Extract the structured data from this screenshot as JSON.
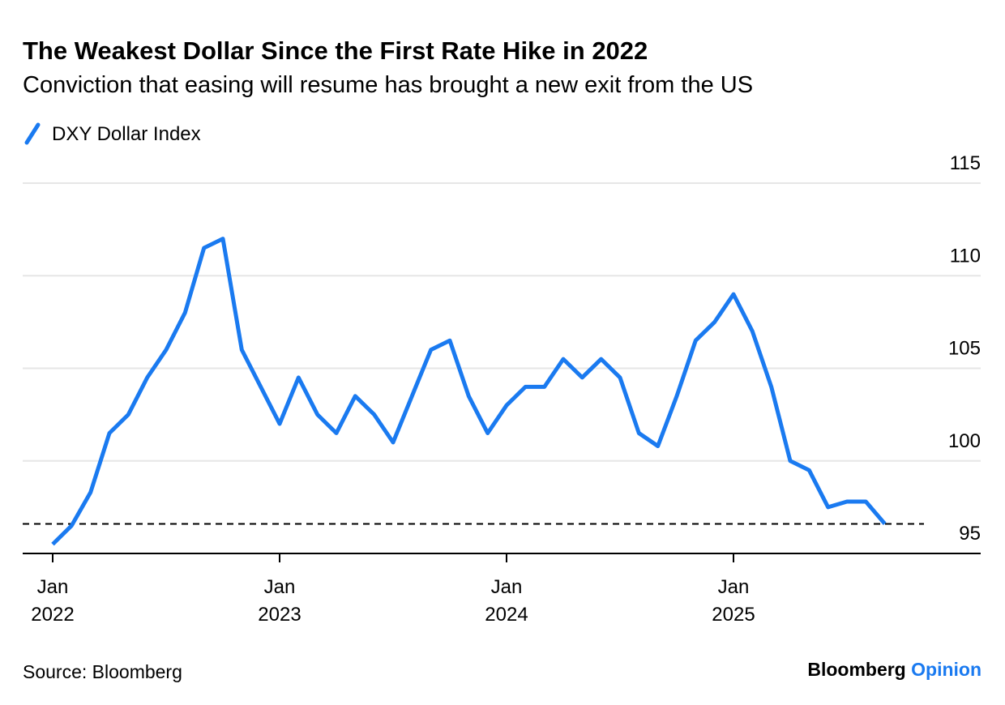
{
  "chart_data": {
    "type": "line",
    "title": "The Weakest Dollar Since the First Rate Hike in 2022",
    "subtitle": "Conviction that easing will resume has brought a new exit from the US",
    "source": "Source: Bloomberg",
    "brand": [
      "Bloomberg",
      "Opinion"
    ],
    "x": [
      "2022-01",
      "2022-02",
      "2022-03",
      "2022-04",
      "2022-05",
      "2022-06",
      "2022-07",
      "2022-08",
      "2022-09",
      "2022-10",
      "2022-11",
      "2022-12",
      "2023-01",
      "2023-02",
      "2023-03",
      "2023-04",
      "2023-05",
      "2023-06",
      "2023-07",
      "2023-08",
      "2023-09",
      "2023-10",
      "2023-11",
      "2023-12",
      "2024-01",
      "2024-02",
      "2024-03",
      "2024-04",
      "2024-05",
      "2024-06",
      "2024-07",
      "2024-08",
      "2024-09",
      "2024-10",
      "2024-11",
      "2024-12",
      "2025-01",
      "2025-02",
      "2025-03",
      "2025-04",
      "2025-05",
      "2025-06",
      "2025-07",
      "2025-08",
      "2025-09"
    ],
    "series": [
      {
        "name": "DXY Dollar Index",
        "color": "#1a7af0",
        "values": [
          95.5,
          96.5,
          98.3,
          101.5,
          102.5,
          104.5,
          106,
          108,
          111.5,
          112,
          106,
          104,
          102,
          104.5,
          102.5,
          101.5,
          103.5,
          102.5,
          101,
          103.5,
          106,
          106.5,
          103.5,
          101.5,
          103,
          104,
          104,
          105.5,
          104.5,
          105.5,
          104.5,
          101.5,
          100.8,
          103.5,
          106.5,
          107.5,
          109,
          107,
          104,
          100,
          99.5,
          97.5,
          97.8,
          97.8,
          96.6
        ]
      }
    ],
    "reference_line": 96.6,
    "ylim": [
      95,
      115
    ],
    "yticks": [
      95,
      100,
      105,
      110,
      115
    ],
    "xticks": [
      {
        "value": "2022-01",
        "label": [
          "Jan",
          "2022"
        ]
      },
      {
        "value": "2023-01",
        "label": [
          "Jan",
          "2023"
        ]
      },
      {
        "value": "2024-01",
        "label": [
          "Jan",
          "2024"
        ]
      },
      {
        "value": "2025-01",
        "label": [
          "Jan",
          "2025"
        ]
      }
    ],
    "grid": true
  }
}
